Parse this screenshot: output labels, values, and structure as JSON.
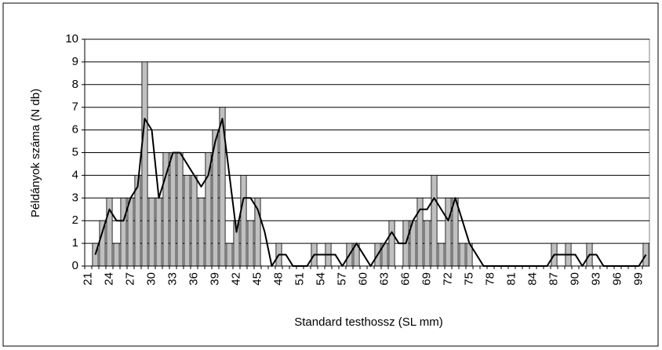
{
  "chart_data": {
    "type": "bar",
    "x_label": "Standard testhossz (SL mm)",
    "y_label": "Példányok száma (N db)",
    "categories": [
      "21",
      null,
      null,
      "24",
      null,
      null,
      "27",
      null,
      null,
      "30",
      null,
      null,
      "33",
      null,
      null,
      "36",
      null,
      null,
      "39",
      null,
      null,
      "42",
      null,
      null,
      "45",
      null,
      null,
      "48",
      null,
      null,
      "51",
      null,
      null,
      "54",
      null,
      null,
      "57",
      null,
      null,
      "60",
      null,
      null,
      "63",
      null,
      null,
      "66",
      null,
      null,
      "69",
      null,
      null,
      "72",
      null,
      null,
      "75",
      null,
      null,
      "78",
      null,
      null,
      "81",
      null,
      null,
      "84",
      null,
      null,
      "87",
      null,
      null,
      "90",
      null,
      null,
      "93",
      null,
      null,
      "96",
      null,
      null,
      "99",
      null
    ],
    "series": [
      {
        "type": "bar",
        "color": "#c0c0c0",
        "values": [
          0,
          1,
          2,
          3,
          1,
          3,
          3,
          4,
          9,
          3,
          3,
          5,
          5,
          5,
          4,
          4,
          3,
          5,
          6,
          7,
          1,
          2,
          4,
          2,
          3,
          0,
          0,
          1,
          0,
          0,
          0,
          0,
          1,
          0,
          1,
          0,
          0,
          1,
          1,
          0,
          0,
          1,
          1,
          2,
          0,
          2,
          2,
          3,
          2,
          4,
          1,
          3,
          3,
          1,
          1,
          0,
          0,
          0,
          0,
          0,
          0,
          0,
          0,
          0,
          0,
          0,
          1,
          0,
          1,
          0,
          0,
          1,
          0,
          0,
          0,
          0,
          0,
          0,
          0,
          1
        ]
      },
      {
        "type": "line",
        "color": "#000000",
        "values": [
          null,
          0.5,
          1.5,
          2.5,
          2,
          2,
          3,
          3.5,
          6.5,
          6,
          3,
          4,
          5,
          5,
          4.5,
          4,
          3.5,
          4,
          5.5,
          6.5,
          4,
          1.5,
          3,
          3,
          2.5,
          1.5,
          0,
          0.5,
          0.5,
          0,
          0,
          0,
          0.5,
          0.5,
          0.5,
          0.5,
          0,
          0.5,
          1,
          0.5,
          0,
          0.5,
          1,
          1.5,
          1,
          1,
          2,
          2.5,
          2.5,
          3,
          2.5,
          2,
          3,
          2,
          1,
          0.5,
          0,
          0,
          0,
          0,
          0,
          0,
          0,
          0,
          0,
          0,
          0.5,
          0.5,
          0.5,
          0.5,
          0,
          0.5,
          0.5,
          0,
          0,
          0,
          0,
          0,
          0,
          0.5
        ]
      }
    ],
    "ylim": [
      0,
      10
    ],
    "yticks": [
      0,
      1,
      2,
      3,
      4,
      5,
      6,
      7,
      8,
      9,
      10
    ],
    "grid": true
  }
}
